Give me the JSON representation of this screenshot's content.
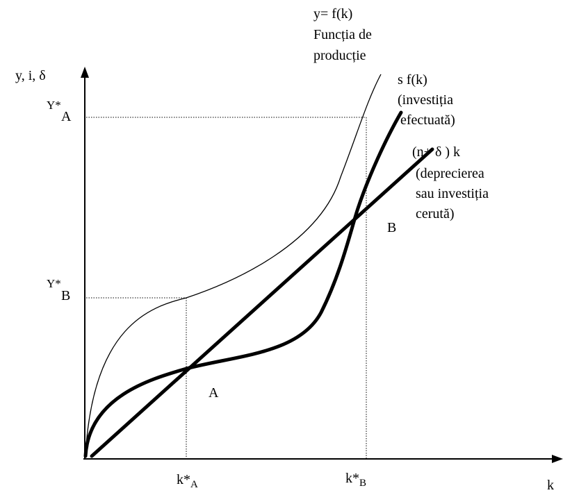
{
  "axes": {
    "y_axis_label": "y, i, δ",
    "x_axis_label": "k"
  },
  "curves": {
    "production": {
      "line1": "y= f(k)",
      "line2": "Funcția de",
      "line3": "producție"
    },
    "investment": {
      "line1": "s f(k)",
      "line2": "(investiția",
      "line3": "efectuată)"
    },
    "depreciation": {
      "line1": "(n+ δ ) k",
      "line2": "(deprecierea",
      "line3": "sau investiția",
      "line4": "cerută)"
    }
  },
  "points": {
    "A": "A",
    "B": "B"
  },
  "levels": {
    "yA": {
      "base": "Y*",
      "sub": "A"
    },
    "yB": {
      "base": "Y*",
      "sub": "B"
    }
  },
  "k_ticks": {
    "kA": {
      "base": "k*",
      "sub": "A"
    },
    "kB": {
      "base": "k*",
      "sub": "B"
    }
  }
}
